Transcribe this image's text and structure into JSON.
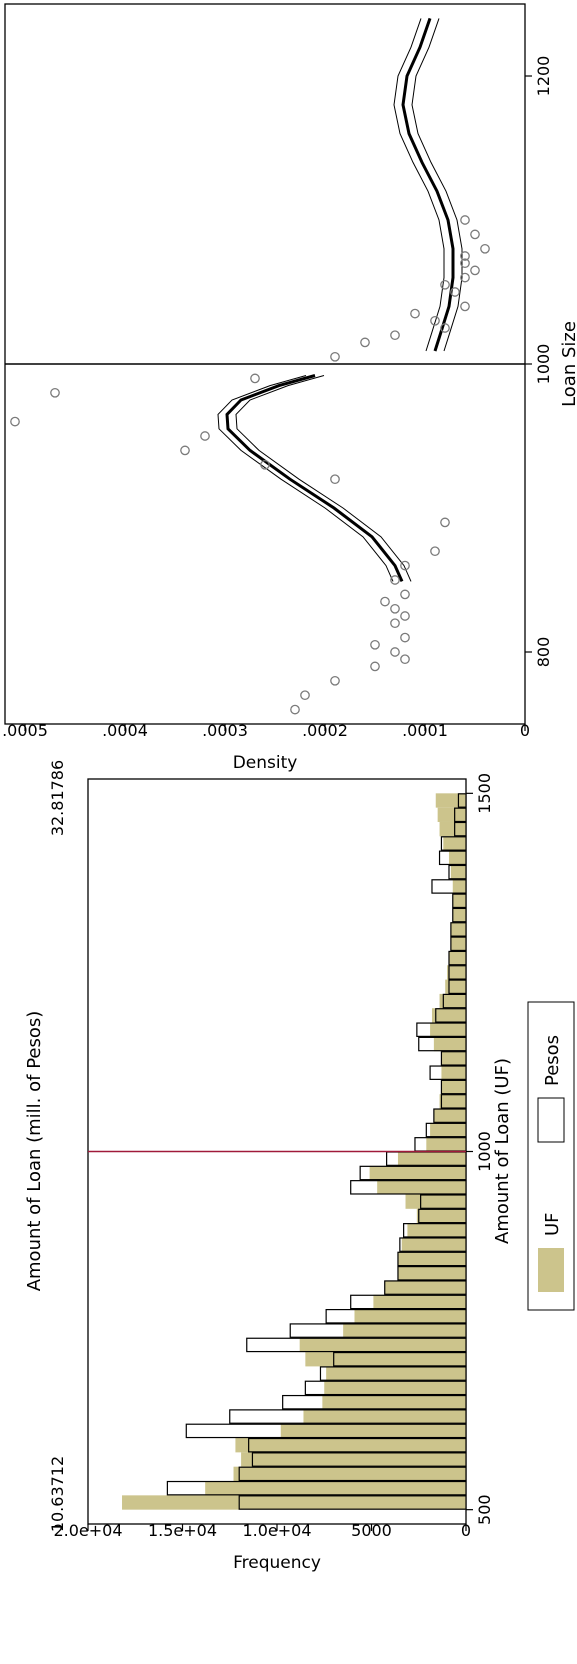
{
  "chart_data": [
    {
      "type": "bar",
      "xlabel": "Amount of Loan (UF)",
      "ylabel": "Frequency",
      "secondary_xlabel": "Amount of Loan (mill. of Pesos)",
      "secondary_tick_labels": [
        "10.63712",
        "32.81786"
      ],
      "xlim": [
        480,
        1520
      ],
      "ylim": [
        0,
        20000
      ],
      "x_ticks": [
        500,
        1000,
        1500
      ],
      "y_ticks": [
        0,
        5000,
        10000,
        15000,
        20000
      ],
      "y_tick_labels": [
        "0",
        "5000",
        "1.0e+04",
        "1.5e+04",
        "2.0e+04"
      ],
      "threshold": 1000,
      "threshold_color": "#a01a3a",
      "bin_width": 20,
      "bin_starts": [
        500,
        520,
        540,
        560,
        580,
        600,
        620,
        640,
        660,
        680,
        700,
        720,
        740,
        760,
        780,
        800,
        820,
        840,
        860,
        880,
        900,
        920,
        940,
        960,
        980,
        1000,
        1020,
        1040,
        1060,
        1080,
        1100,
        1120,
        1140,
        1160,
        1180,
        1200,
        1220,
        1240,
        1260,
        1280,
        1300,
        1320,
        1340,
        1360,
        1380,
        1400,
        1420,
        1440,
        1460,
        1480
      ],
      "series": [
        {
          "name": "UF",
          "color": "#ccc48c",
          "values": [
            18200,
            13800,
            12300,
            11900,
            12200,
            9800,
            8600,
            7600,
            7500,
            7400,
            8500,
            8800,
            6500,
            5900,
            4900,
            4300,
            3600,
            3600,
            3400,
            3100,
            2600,
            3200,
            4700,
            5100,
            3600,
            2100,
            1900,
            1700,
            1400,
            1300,
            1300,
            1300,
            1700,
            1900,
            1800,
            1400,
            1100,
            1000,
            900,
            800,
            800,
            700,
            700,
            700,
            800,
            900,
            1200,
            1400,
            1500,
            1600
          ]
        },
        {
          "name": "Pesos",
          "color": "#ffffff",
          "values": [
            12000,
            15800,
            12000,
            11300,
            11500,
            14800,
            12500,
            9700,
            8500,
            7700,
            7000,
            11600,
            9300,
            7400,
            6100,
            4300,
            3600,
            3600,
            3500,
            3300,
            2500,
            2400,
            6100,
            5600,
            4200,
            2700,
            2100,
            1700,
            1300,
            1300,
            1900,
            1300,
            2500,
            2600,
            1600,
            1200,
            900,
            900,
            900,
            800,
            800,
            700,
            700,
            1800,
            900,
            1400,
            1300,
            600,
            600,
            400
          ]
        }
      ],
      "legend_position": "bottom",
      "grid": false
    },
    {
      "type": "scatter",
      "xlabel": "Loan Size",
      "ylabel": "Density",
      "xlim": [
        750,
        1250
      ],
      "ylim": [
        0,
        0.00052
      ],
      "x_ticks": [
        800,
        1000,
        1200
      ],
      "y_ticks": [
        0,
        0.0001,
        0.0002,
        0.0003,
        0.0004,
        0.0005
      ],
      "y_tick_labels": [
        "0",
        ".0001",
        ".0002",
        ".0003",
        ".0004",
        ".0005"
      ],
      "threshold": 1000,
      "points": {
        "x": [
          760,
          770,
          780,
          790,
          795,
          800,
          805,
          810,
          820,
          825,
          830,
          835,
          840,
          850,
          860,
          870,
          890,
          920,
          930,
          940,
          950,
          960,
          980,
          990,
          1005,
          1015,
          1020,
          1025,
          1030,
          1035,
          1040,
          1050,
          1055,
          1060,
          1065,
          1070,
          1075,
          1080,
          1090,
          1100
        ],
        "y": [
          0.00023,
          0.00022,
          0.00019,
          0.00015,
          0.00012,
          0.00013,
          0.00015,
          0.00012,
          0.00013,
          0.00012,
          0.00013,
          0.00014,
          0.00012,
          0.00013,
          0.00012,
          9e-05,
          8e-05,
          0.00019,
          0.00026,
          0.00034,
          0.00032,
          0.00051,
          0.00047,
          0.00027,
          0.00019,
          0.00016,
          0.00013,
          8e-05,
          9e-05,
          0.00011,
          6e-05,
          7e-05,
          8e-05,
          6e-05,
          5e-05,
          6e-05,
          6e-05,
          4e-05,
          5e-05,
          6e-05
        ]
      },
      "fit_left": {
        "x": [
          849,
          860,
          880,
          900,
          920,
          940,
          955,
          965,
          975,
          985,
          992
        ],
        "y": [
          0.000123,
          0.00013,
          0.000153,
          0.000191,
          0.000235,
          0.000275,
          0.000297,
          0.000298,
          0.000284,
          0.000246,
          0.00021
        ],
        "ci_halfwidth": 9e-06
      },
      "fit_right": {
        "x": [
          1009,
          1020,
          1040,
          1060,
          1080,
          1100,
          1120,
          1140,
          1160,
          1180,
          1200,
          1220,
          1240
        ],
        "y": [
          9e-05,
          8.5e-05,
          7.6e-05,
          7.2e-05,
          7.2e-05,
          7.7e-05,
          8.8e-05,
          0.000103,
          0.000116,
          0.000122,
          0.000118,
          0.000105,
          9.5e-05
        ],
        "ci_halfwidth": 9e-06
      },
      "grid": false
    }
  ]
}
